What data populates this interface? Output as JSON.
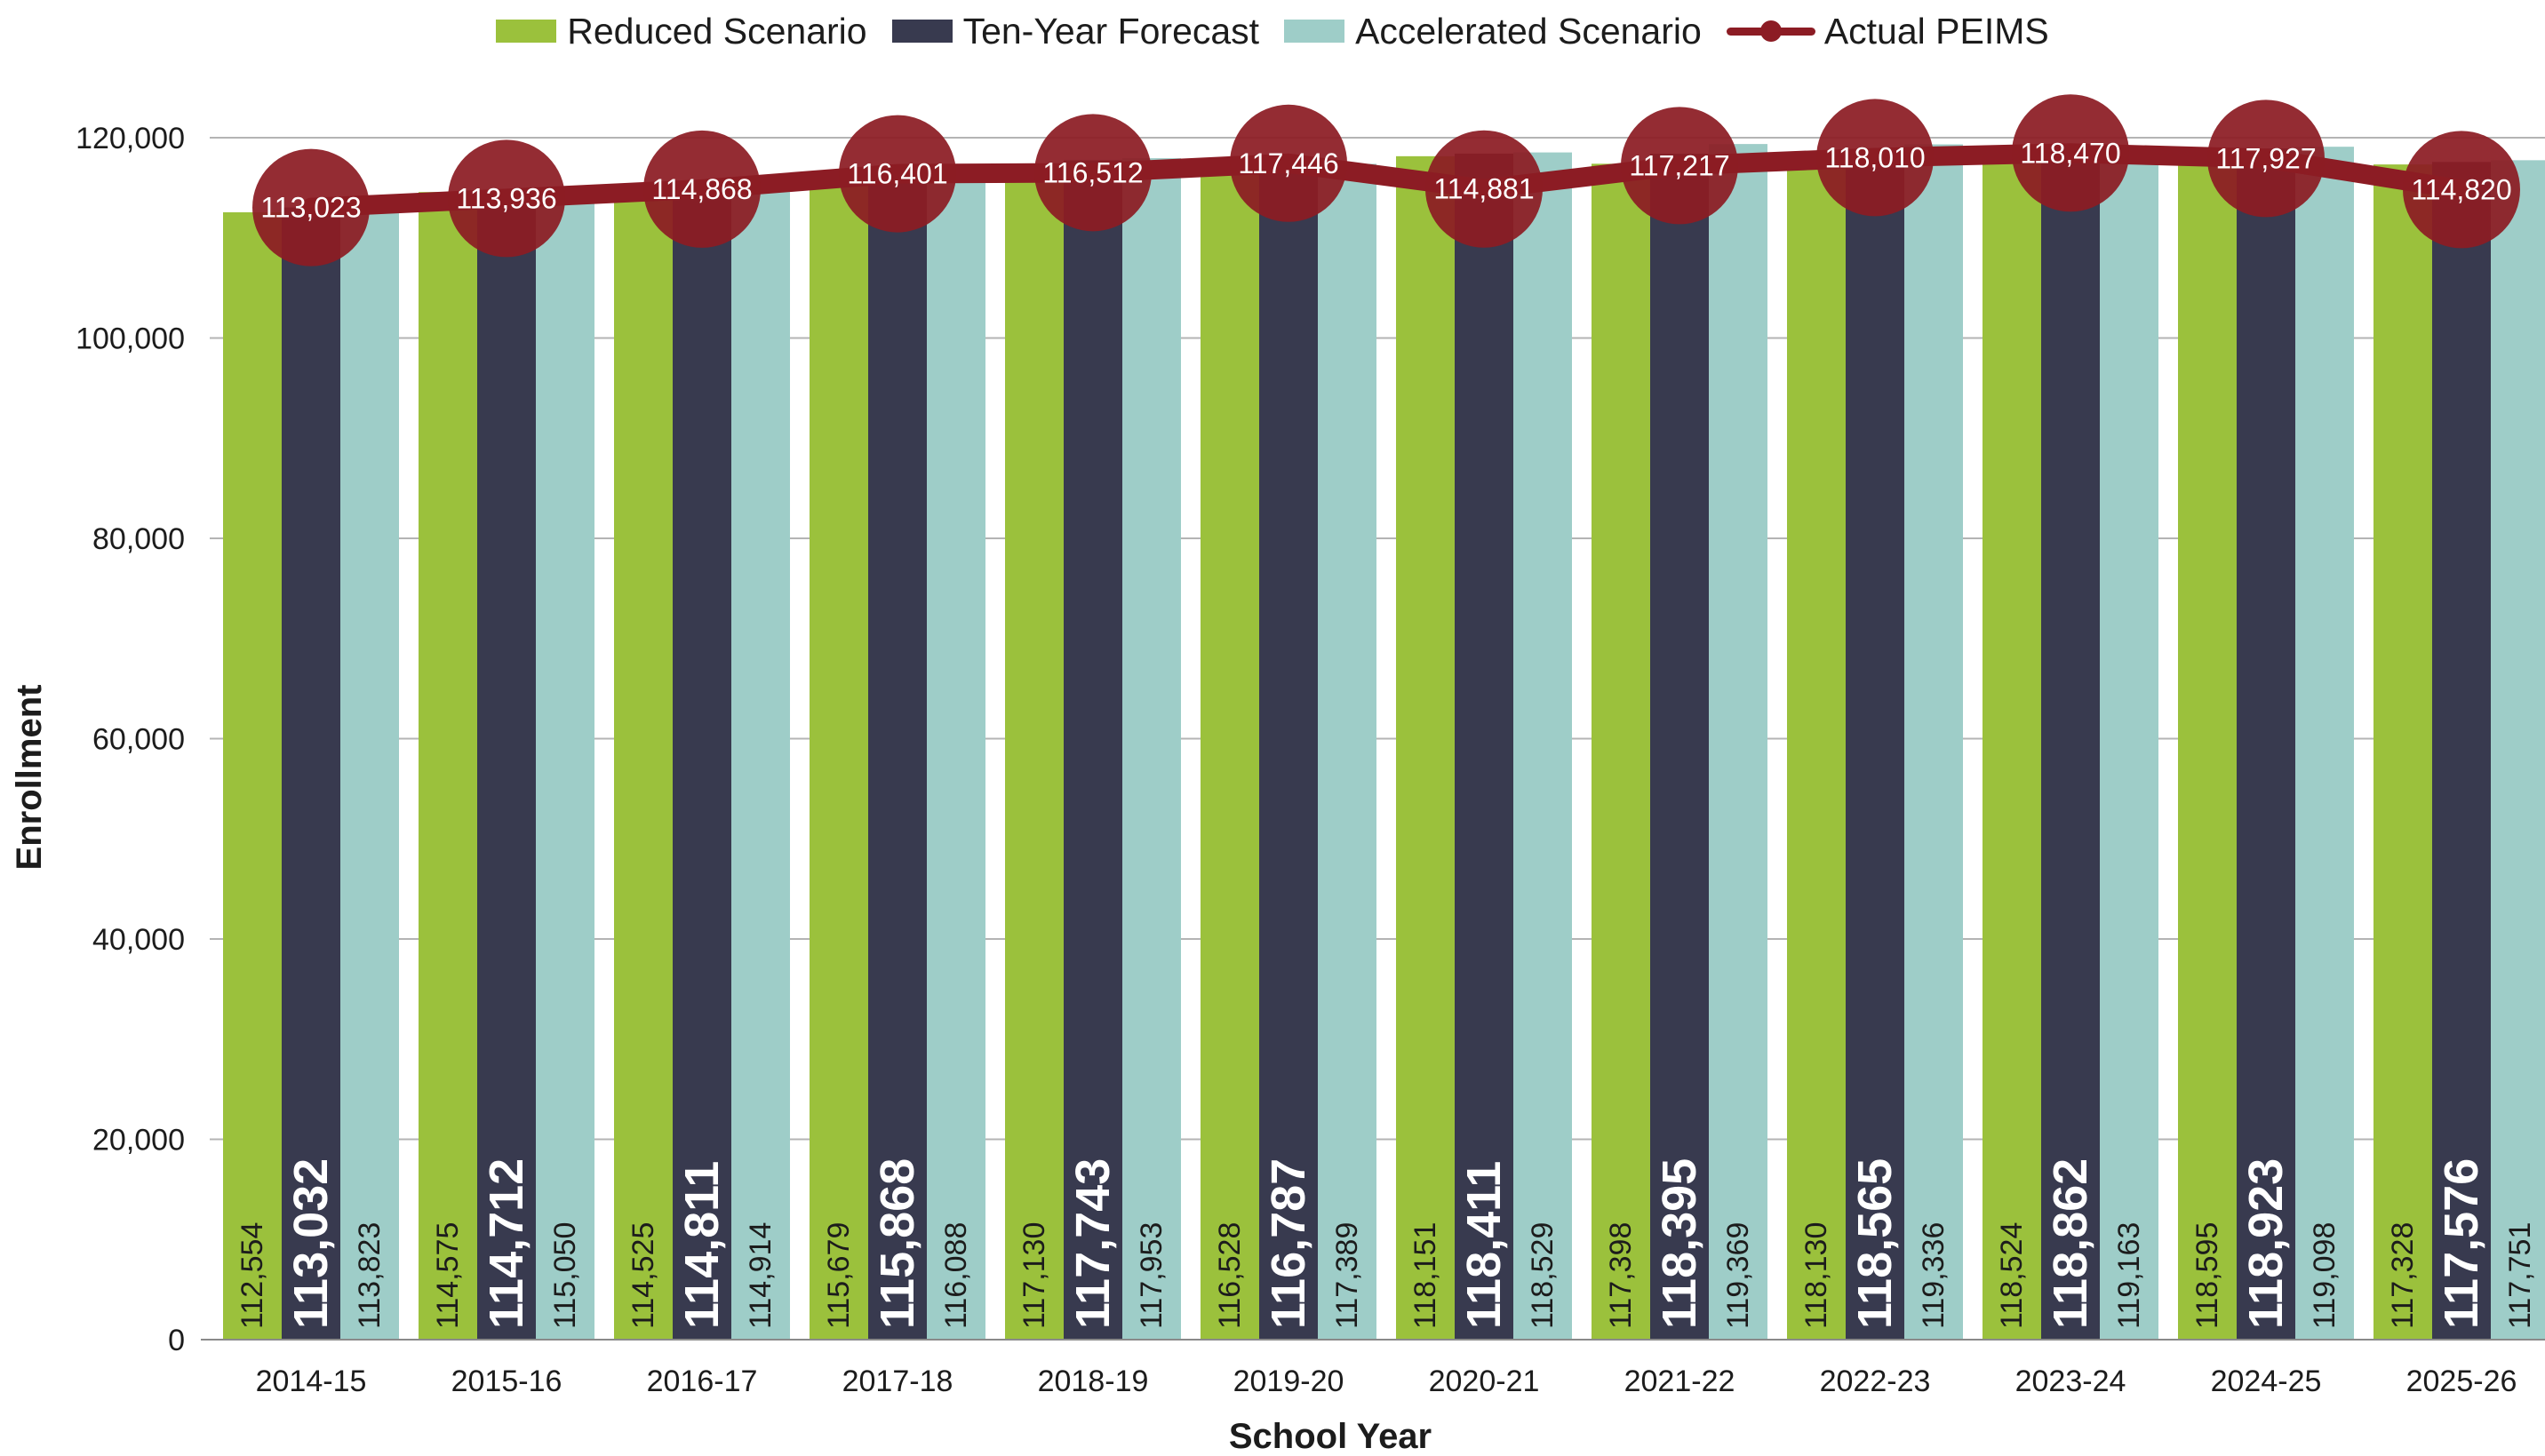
{
  "legend": {
    "items": [
      {
        "label": "Reduced Scenario",
        "color": "#9bc13c",
        "kind": "bar"
      },
      {
        "label": "Ten-Year Forecast",
        "color": "#383a4f",
        "kind": "bar"
      },
      {
        "label": "Accelerated Scenario",
        "color": "#9ecdc8",
        "kind": "bar"
      },
      {
        "label": "Actual PEIMS",
        "color": "#8c1c24",
        "kind": "line"
      }
    ]
  },
  "chart_data": {
    "type": "bar",
    "xlabel": "School Year",
    "ylabel": "Enrollment",
    "ylim": [
      0,
      120000
    ],
    "yticks": [
      0,
      20000,
      40000,
      60000,
      80000,
      100000,
      120000
    ],
    "ytick_labels": [
      "0",
      "20,000",
      "40,000",
      "60,000",
      "80,000",
      "100,000",
      "120,000"
    ],
    "grid": true,
    "legend_position": "top",
    "categories": [
      "2014-15",
      "2015-16",
      "2016-17",
      "2017-18",
      "2018-19",
      "2019-20",
      "2020-21",
      "2021-22",
      "2022-23",
      "2023-24",
      "2024-25",
      "2025-26"
    ],
    "series": [
      {
        "name": "Reduced Scenario",
        "type": "bar",
        "color": "#9bc13c",
        "values": [
          112554,
          114575,
          114525,
          115679,
          117130,
          116528,
          118151,
          117398,
          118130,
          118524,
          118595,
          117328
        ],
        "labels": [
          "112,554",
          "114,575",
          "114,525",
          "115,679",
          "117,130",
          "116,528",
          "118,151",
          "117,398",
          "118,130",
          "118,524",
          "118,595",
          "117,328"
        ]
      },
      {
        "name": "Ten-Year Forecast",
        "type": "bar",
        "color": "#383a4f",
        "values": [
          113032,
          114712,
          114811,
          115868,
          117743,
          116787,
          118411,
          118395,
          118565,
          118862,
          118923,
          117576
        ],
        "labels": [
          "113,032",
          "114,712",
          "114,811",
          "115,868",
          "117,743",
          "116,787",
          "118,411",
          "118,395",
          "118,565",
          "118,862",
          "118,923",
          "117,576"
        ]
      },
      {
        "name": "Accelerated Scenario",
        "type": "bar",
        "color": "#9ecdc8",
        "values": [
          113823,
          115050,
          114914,
          116088,
          117953,
          117389,
          118529,
          119369,
          119336,
          119163,
          119098,
          117751
        ],
        "labels": [
          "113,823",
          "115,050",
          "114,914",
          "116,088",
          "117,953",
          "117,389",
          "118,529",
          "119,369",
          "119,336",
          "119,163",
          "119,098",
          "117,751"
        ]
      },
      {
        "name": "Actual PEIMS",
        "type": "line",
        "color": "#8c1c24",
        "values": [
          113023,
          113936,
          114868,
          116401,
          116512,
          117446,
          114881,
          117217,
          118010,
          118470,
          117927,
          114820
        ],
        "labels": [
          "113,023",
          "113,936",
          "114,868",
          "116,401",
          "116,512",
          "117,446",
          "114,881",
          "117,217",
          "118,010",
          "118,470",
          "117,927",
          "114,820"
        ]
      }
    ]
  }
}
